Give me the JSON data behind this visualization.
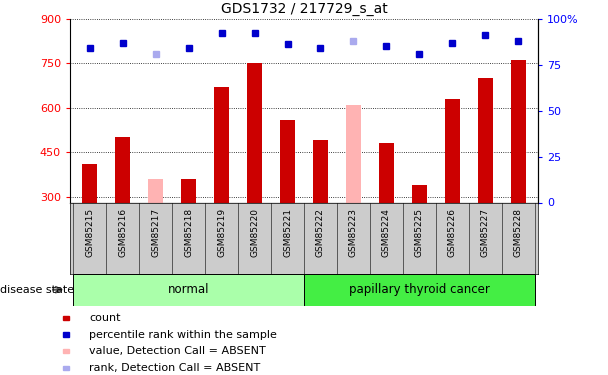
{
  "title": "GDS1732 / 217729_s_at",
  "samples": [
    "GSM85215",
    "GSM85216",
    "GSM85217",
    "GSM85218",
    "GSM85219",
    "GSM85220",
    "GSM85221",
    "GSM85222",
    "GSM85223",
    "GSM85224",
    "GSM85225",
    "GSM85226",
    "GSM85227",
    "GSM85228"
  ],
  "count_values": [
    410,
    500,
    null,
    360,
    670,
    750,
    560,
    490,
    null,
    480,
    340,
    630,
    700,
    760
  ],
  "count_absent": [
    null,
    null,
    360,
    null,
    null,
    null,
    null,
    null,
    610,
    null,
    null,
    null,
    null,
    null
  ],
  "rank_values": [
    84,
    87,
    null,
    84,
    92,
    92,
    86,
    84,
    null,
    85,
    81,
    87,
    91,
    88
  ],
  "rank_absent": [
    null,
    null,
    81,
    null,
    null,
    null,
    null,
    null,
    88,
    null,
    null,
    null,
    null,
    null
  ],
  "ylim_left": [
    280,
    900
  ],
  "ylim_right": [
    0,
    100
  ],
  "yticks_left": [
    300,
    450,
    600,
    750,
    900
  ],
  "yticks_right": [
    0,
    25,
    50,
    75,
    100
  ],
  "normal_indices": [
    0,
    1,
    2,
    3,
    4,
    5,
    6
  ],
  "cancer_indices": [
    7,
    8,
    9,
    10,
    11,
    12,
    13
  ],
  "bar_color_present": "#cc0000",
  "bar_color_absent": "#ffb3b3",
  "rank_color_present": "#0000cc",
  "rank_color_absent": "#aaaaee",
  "normal_bg_xtick": "#cccccc",
  "normal_bg": "#aaffaa",
  "cancer_bg": "#44ee44",
  "bar_width": 0.45,
  "legend_items": [
    {
      "label": "count",
      "color": "#cc0000"
    },
    {
      "label": "percentile rank within the sample",
      "color": "#0000cc"
    },
    {
      "label": "value, Detection Call = ABSENT",
      "color": "#ffb3b3"
    },
    {
      "label": "rank, Detection Call = ABSENT",
      "color": "#aaaaee"
    }
  ]
}
